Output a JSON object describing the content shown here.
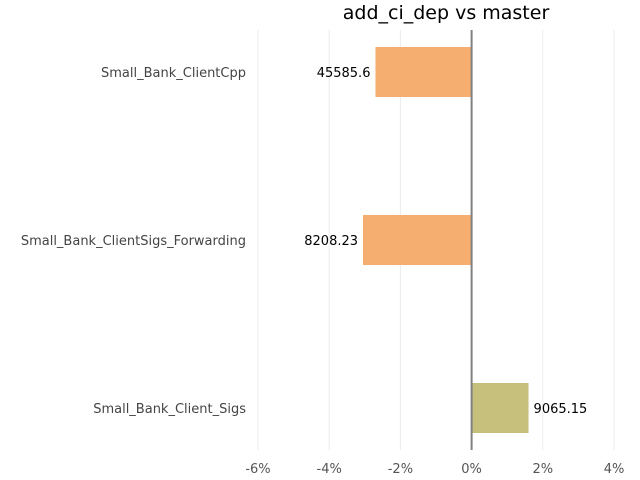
{
  "chart_data": {
    "type": "bar",
    "orientation": "horizontal",
    "title": "add_ci_dep vs master",
    "xlabel": "",
    "ylabel": "",
    "categories": [
      "Small_Bank_ClientCpp",
      "Small_Bank_ClientSigs_Forwarding",
      "Small_Bank_Client_Sigs"
    ],
    "values": [
      -2.7,
      -3.05,
      1.6
    ],
    "data_labels": [
      "45585.6",
      "8208.23",
      "9065.15"
    ],
    "xlim": [
      -6,
      4
    ],
    "x_ticks": [
      -6,
      -4,
      -2,
      0,
      2,
      4
    ],
    "x_tick_labels": [
      "-6%",
      "-4%",
      "-2%",
      "0%",
      "2%",
      "4%"
    ],
    "grid": "vertical",
    "colors": {
      "negative": "#f5ae70",
      "positive": "#c6c07c",
      "zero_line": "#808080",
      "grid": "#ececec"
    }
  }
}
